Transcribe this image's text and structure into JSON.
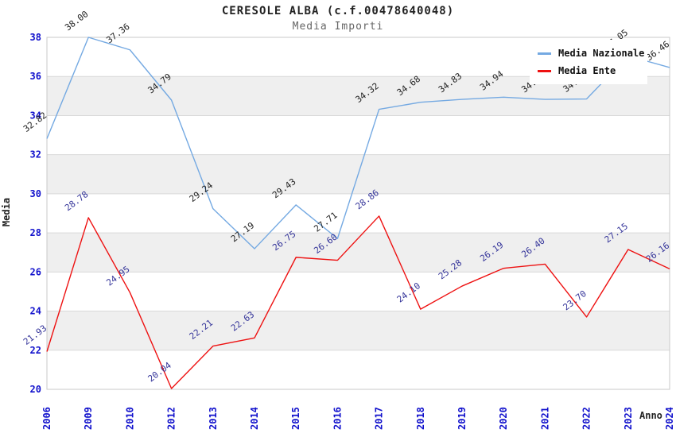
{
  "title": "CERESOLE ALBA (c.f.00478640048)",
  "subtitle": "Media Importi",
  "chart_data": {
    "type": "line",
    "categories": [
      "2006",
      "2009",
      "2010",
      "2012",
      "2013",
      "2014",
      "2015",
      "2016",
      "2017",
      "2018",
      "2019",
      "2020",
      "2021",
      "2022",
      "2023",
      "2024"
    ],
    "series": [
      {
        "name": "Media Nazionale",
        "color": "#74a9e2",
        "label_color": "#222222",
        "values": [
          32.82,
          38.0,
          37.36,
          34.79,
          29.24,
          27.19,
          29.43,
          27.71,
          34.32,
          34.68,
          34.83,
          34.94,
          34.83,
          34.85,
          37.05,
          36.46
        ]
      },
      {
        "name": "Media Ente",
        "color": "#ee1111",
        "label_color": "#333399",
        "values": [
          21.93,
          28.78,
          24.95,
          20.04,
          22.21,
          22.63,
          26.75,
          26.6,
          28.86,
          24.1,
          25.28,
          26.19,
          26.4,
          23.7,
          27.15,
          26.16
        ]
      }
    ],
    "xlabel": "Anno",
    "ylabel": "Media",
    "ylim": [
      20,
      38
    ],
    "ytick_step": 2,
    "grid": true,
    "band_fill_alternate": true,
    "legend_position": "top-right",
    "axis_tick_color": "#1111cc",
    "band_color": "#efefef",
    "gridline_color": "#d9d9d9",
    "border_color": "#c8c8c8",
    "label_decimals": 2
  }
}
